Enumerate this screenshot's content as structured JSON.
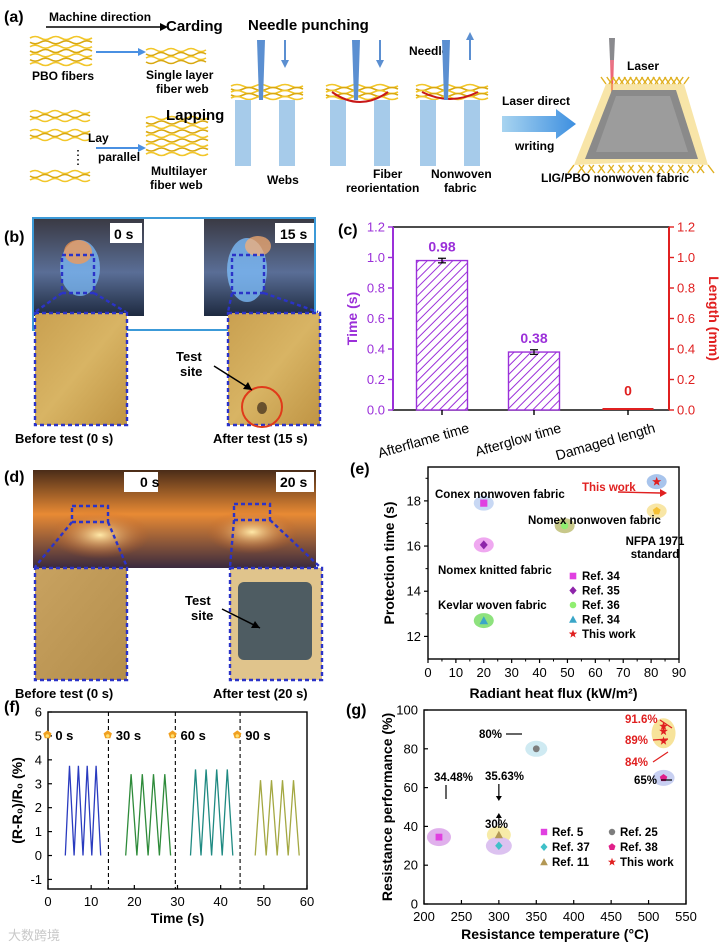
{
  "panels": {
    "a": "(a)",
    "b": "(b)",
    "c": "(c)",
    "d": "(d)",
    "e": "(e)",
    "f": "(f)",
    "g": "(g)"
  },
  "panel_a": {
    "machine_direction": "Machine direction",
    "carding": "Carding",
    "pbo_fibers": "PBO fibers",
    "single_layer": "Single layer",
    "fiber_web": "fiber web",
    "lapping": "Lapping",
    "lay": "Lay",
    "parallel": "parallel",
    "multilayer": "Multilayer",
    "fiber_web2": "fiber web",
    "needle_punching": "Needle punching",
    "needle": "Needle",
    "webs": "Webs",
    "fiber": "Fiber",
    "reorientation": "reorientation",
    "nonwoven": "Nonwoven",
    "fabric": "fabric",
    "laser_direct": "Laser direct",
    "writing": "writing",
    "laser": "Laser",
    "product": "LIG/PBO nonwoven fabric"
  },
  "panel_b": {
    "t0": "0 s",
    "t1": "15 s",
    "before": "Before test (0 s)",
    "after": "After test (15 s)",
    "test": "Test",
    "site": "site"
  },
  "panel_d": {
    "t0": "0 s",
    "t1": "20 s",
    "before": "Before test (0 s)",
    "after": "After test (20 s)",
    "test": "Test",
    "site": "site"
  },
  "chart_data": [
    {
      "id": "c",
      "type": "bar",
      "categories": [
        "Afterflame time",
        "Afterglow time",
        "Damaged length"
      ],
      "values": [
        0.98,
        0.38,
        0
      ],
      "errors": [
        0.015,
        0.015,
        0
      ],
      "value_labels": [
        "0.98",
        "0.38",
        "0"
      ],
      "ylabel_left": "Time (s)",
      "ylabel_right": "Length (mm)",
      "ylim": [
        0,
        1.2
      ],
      "yticks": [
        "0.0",
        "0.2",
        "0.4",
        "0.6",
        "0.8",
        "1.0",
        "1.2"
      ],
      "left_color": "#9b30d9",
      "right_color": "#e02020"
    },
    {
      "id": "e",
      "type": "scatter",
      "xlabel": "Radiant heat flux (kW/m²)",
      "ylabel": "Protection time (s)",
      "xlim": [
        0,
        90
      ],
      "ylim": [
        11,
        19.5
      ],
      "xticks": [
        "0",
        "10",
        "20",
        "30",
        "40",
        "50",
        "60",
        "70",
        "80",
        "90"
      ],
      "yticks": [
        "12",
        "14",
        "16",
        "18"
      ],
      "points": [
        {
          "label": "Conex nonwoven fabric",
          "x": 20,
          "y": 17.9,
          "marker": "square",
          "color": "#e040e0",
          "halo": "#c8d8f4"
        },
        {
          "label": "Nomex knitted fabric",
          "x": 20,
          "y": 16.05,
          "marker": "diamond",
          "color": "#8e24aa",
          "halo": "#efa8f0"
        },
        {
          "label": "Kevlar woven fabric",
          "x": 20,
          "y": 12.7,
          "marker": "triangle",
          "color": "#3aa6c8",
          "halo": "#8ee27e"
        },
        {
          "label": "Nomex nonwoven fabric",
          "x": 49,
          "y": 16.9,
          "marker": "circle",
          "color": "#90ee70",
          "halo": "#c8c88a"
        },
        {
          "label": "NFPA 1971",
          "x": 82,
          "y": 17.55,
          "marker": "pentagon",
          "color": "#f5c033",
          "halo": "#f8e6a6"
        },
        {
          "label": "This work",
          "x": 82,
          "y": 18.85,
          "marker": "star",
          "color": "#e02020",
          "halo": "#a8c4ec"
        }
      ],
      "nfpa_sub": "standard",
      "legend": [
        {
          "label": "Ref. 34",
          "marker": "square",
          "color": "#e040e0"
        },
        {
          "label": "Ref. 35",
          "marker": "diamond",
          "color": "#8e24aa"
        },
        {
          "label": "Ref. 36",
          "marker": "circle",
          "color": "#90ee70"
        },
        {
          "label": "Ref. 34",
          "marker": "triangle",
          "color": "#3aa6c8"
        },
        {
          "label": "This work",
          "marker": "star",
          "color": "#e02020"
        }
      ]
    },
    {
      "id": "f",
      "type": "line",
      "xlabel": "Time (s)",
      "ylabel": "(R-R₀)/R₀ (%)",
      "xlim": [
        0,
        60
      ],
      "ylim": [
        -1.4,
        6
      ],
      "xticks": [
        "0",
        "10",
        "20",
        "30",
        "40",
        "50",
        "60"
      ],
      "yticks": [
        "-1",
        "0",
        "1",
        "2",
        "3",
        "4",
        "5",
        "6"
      ],
      "dividers": [
        14,
        29.5,
        44.5
      ],
      "segments": [
        {
          "label": "0 s",
          "start": 4,
          "cycles": 4,
          "period": 2.05,
          "peak": 3.75,
          "color": "#2a3bbf"
        },
        {
          "label": "30 s",
          "start": 18,
          "cycles": 4,
          "period": 2.6,
          "peak": 3.4,
          "color": "#2e8b3a"
        },
        {
          "label": "60 s",
          "start": 33,
          "cycles": 4,
          "period": 2.45,
          "peak": 3.6,
          "color": "#1f8a82"
        },
        {
          "label": "90 s",
          "start": 48,
          "cycles": 4,
          "period": 2.55,
          "peak": 3.15,
          "color": "#a4a842"
        }
      ]
    },
    {
      "id": "g",
      "type": "scatter",
      "xlabel": "Resistance temperature (°C)",
      "ylabel": "Resistance performance (%)",
      "xlim": [
        200,
        550
      ],
      "ylim": [
        0,
        100
      ],
      "xticks": [
        "200",
        "250",
        "300",
        "350",
        "400",
        "450",
        "500",
        "550"
      ],
      "yticks": [
        "0",
        "20",
        "40",
        "60",
        "80",
        "100"
      ],
      "points": [
        {
          "label": "34.48%",
          "x": 220,
          "y": 34.48,
          "marker": "square",
          "color": "#e040e0",
          "halo": "#e0b0ec"
        },
        {
          "label": "35.63%",
          "x": 300,
          "y": 35.63,
          "marker": "triangle",
          "color": "#b39855",
          "halo": "#f7eba8"
        },
        {
          "label": "30%",
          "x": 300,
          "y": 30,
          "marker": "diamond",
          "color": "#3fc0c8",
          "halo": "#dcc2f0"
        },
        {
          "label": "80%",
          "x": 350,
          "y": 80,
          "marker": "circle",
          "color": "#7d7d7d",
          "halo": "#cfeaf2"
        },
        {
          "label": "65%",
          "x": 520,
          "y": 65,
          "marker": "pentagon",
          "color": "#e0208a",
          "halo": "#c8d0f2"
        },
        {
          "label": "91.6%",
          "x": 520,
          "y": 91.6,
          "marker": "star",
          "color": "#e02020",
          "halo": "#f7e39a"
        },
        {
          "label": "89%",
          "x": 520,
          "y": 89,
          "marker": "star",
          "color": "#e02020",
          "halo": "none"
        },
        {
          "label": "84%",
          "x": 520,
          "y": 84,
          "marker": "star",
          "color": "#e02020",
          "halo": "none"
        }
      ],
      "legend": [
        {
          "label": "Ref. 5",
          "marker": "square",
          "color": "#e040e0"
        },
        {
          "label": "Ref. 25",
          "marker": "circle",
          "color": "#7d7d7d"
        },
        {
          "label": "Ref. 37",
          "marker": "diamond",
          "color": "#3fc0c8"
        },
        {
          "label": "Ref. 38",
          "marker": "pentagon",
          "color": "#e0208a"
        },
        {
          "label": "Ref. 11",
          "marker": "triangle",
          "color": "#b39855"
        },
        {
          "label": "This work",
          "marker": "star",
          "color": "#e02020"
        }
      ]
    }
  ],
  "watermark": "大数跨境"
}
